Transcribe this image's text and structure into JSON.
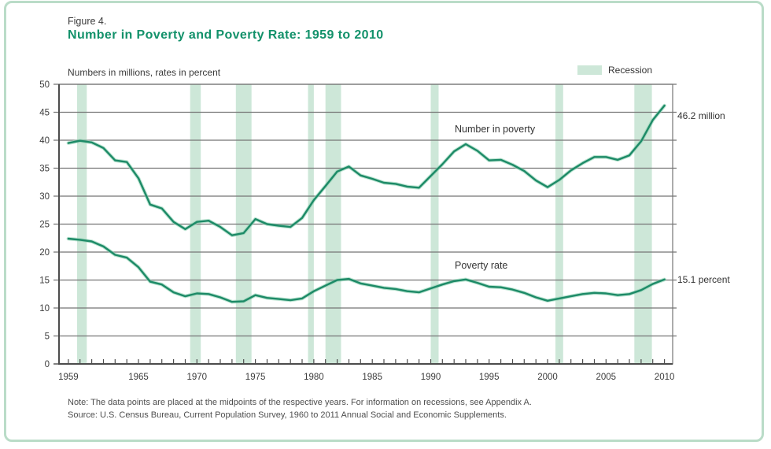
{
  "figure": {
    "label": "Figure 4.",
    "title": "Number in Poverty and Poverty Rate: 1959 to 2010",
    "subtitle": "Numbers in millions, rates in percent",
    "note": "Note: The data points are placed at the midpoints of the respective years. For information on recessions, see Appendix A.",
    "source": "Source: U.S. Census Bureau, Current Population Survey, 1960 to 2011 Annual Social and Economic Supplements."
  },
  "legend": {
    "recession_label": "Recession"
  },
  "annotations": {
    "number_end": "46.2 million",
    "rate_end": "15.1 percent"
  },
  "colors": {
    "title_green": "#12916a",
    "line": "#1d8a67",
    "line_halo": "#8ed2b2",
    "recession_band": "#cde7d8",
    "grid": "#757575",
    "axis": "#4c4c4c",
    "border_green": "#badcc8",
    "text_dark": "#3a3a3a",
    "note_gray": "#4e4e4e"
  },
  "chart_data": {
    "type": "line",
    "title": "Number in Poverty and Poverty Rate: 1959 to 2010",
    "xlabel": "",
    "ylabel": "Numbers in millions, rates in percent",
    "ylim": [
      0,
      50
    ],
    "yticks": [
      0,
      5,
      10,
      15,
      20,
      25,
      30,
      35,
      40,
      45,
      50
    ],
    "xticks": [
      1959,
      1965,
      1970,
      1975,
      1980,
      1985,
      1990,
      1995,
      2000,
      2005,
      2010
    ],
    "grid": "horizontal",
    "legend_position": "top-right",
    "x": [
      1959,
      1960,
      1961,
      1962,
      1963,
      1964,
      1965,
      1966,
      1967,
      1968,
      1969,
      1970,
      1971,
      1972,
      1973,
      1974,
      1975,
      1976,
      1977,
      1978,
      1979,
      1980,
      1981,
      1982,
      1983,
      1984,
      1985,
      1986,
      1987,
      1988,
      1989,
      1990,
      1991,
      1992,
      1993,
      1994,
      1995,
      1996,
      1997,
      1998,
      1999,
      2000,
      2001,
      2002,
      2003,
      2004,
      2005,
      2006,
      2007,
      2008,
      2009,
      2010
    ],
    "series": [
      {
        "name": "Number in poverty",
        "unit": "millions",
        "values": [
          39.5,
          39.9,
          39.6,
          38.6,
          36.4,
          36.1,
          33.2,
          28.5,
          27.8,
          25.4,
          24.1,
          25.4,
          25.6,
          24.5,
          23.0,
          23.4,
          25.9,
          25.0,
          24.7,
          24.5,
          26.1,
          29.3,
          31.8,
          34.4,
          35.3,
          33.7,
          33.1,
          32.4,
          32.2,
          31.7,
          31.5,
          33.6,
          35.7,
          38.0,
          39.3,
          38.1,
          36.4,
          36.5,
          35.6,
          34.5,
          32.8,
          31.6,
          32.9,
          34.6,
          35.9,
          37.0,
          37.0,
          36.5,
          37.3,
          39.8,
          43.6,
          46.2
        ]
      },
      {
        "name": "Poverty rate",
        "unit": "percent",
        "values": [
          22.4,
          22.2,
          21.9,
          21.0,
          19.5,
          19.0,
          17.3,
          14.7,
          14.2,
          12.8,
          12.1,
          12.6,
          12.5,
          11.9,
          11.1,
          11.2,
          12.3,
          11.8,
          11.6,
          11.4,
          11.7,
          13.0,
          14.0,
          15.0,
          15.2,
          14.4,
          14.0,
          13.6,
          13.4,
          13.0,
          12.8,
          13.5,
          14.2,
          14.8,
          15.1,
          14.5,
          13.8,
          13.7,
          13.3,
          12.7,
          11.9,
          11.3,
          11.7,
          12.1,
          12.5,
          12.7,
          12.6,
          12.3,
          12.5,
          13.2,
          14.3,
          15.1
        ]
      }
    ],
    "recessions": [
      [
        1960.25,
        1961.08
      ],
      [
        1969.92,
        1970.83
      ],
      [
        1973.83,
        1975.17
      ],
      [
        1980.0,
        1980.5
      ],
      [
        1981.5,
        1982.83
      ],
      [
        1990.5,
        1991.17
      ],
      [
        2001.17,
        2001.83
      ],
      [
        2007.92,
        2009.42
      ]
    ]
  }
}
